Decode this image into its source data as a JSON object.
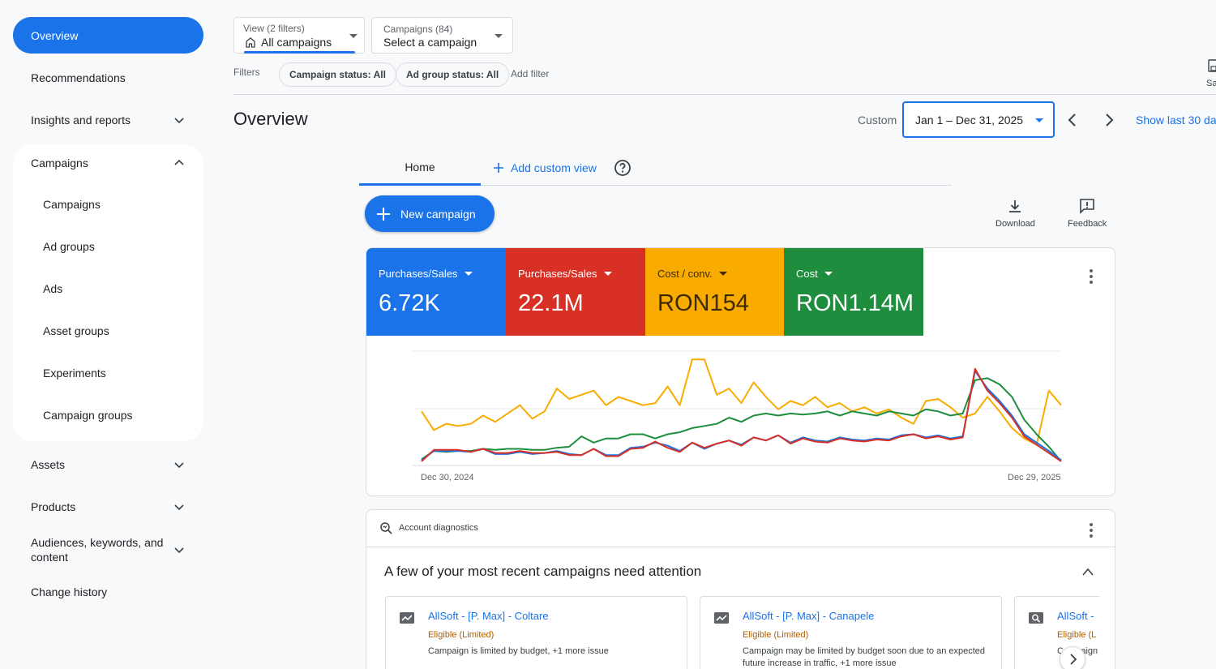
{
  "sidebar": {
    "overview": "Overview",
    "recommendations": "Recommendations",
    "insights": "Insights and reports",
    "campaigns_group": "Campaigns",
    "campaign_items": [
      "Campaigns",
      "Ad groups",
      "Ads",
      "Asset groups",
      "Experiments",
      "Campaign groups"
    ],
    "assets": "Assets",
    "products": "Products",
    "audiences": "Audiences, keywords, and content",
    "change_history": "Change history"
  },
  "filters": {
    "view_small": "View (2 filters)",
    "view_value": "All campaigns",
    "campaigns_small": "Campaigns (84)",
    "campaigns_value": "Select a campaign",
    "label": "Filters",
    "chips": [
      "Campaign status: All",
      "Ad group status: All"
    ],
    "add_filter": "Add filter",
    "right_partial": "Sa"
  },
  "header": {
    "title": "Overview",
    "date_label": "Custom",
    "date_range": "Jan 1 – Dec 31, 2025",
    "show_last": "Show last 30 da"
  },
  "tabs": {
    "home": "Home",
    "add_custom": "Add custom view"
  },
  "actions": {
    "new_campaign": "New campaign",
    "download": "Download",
    "feedback": "Feedback"
  },
  "metrics": [
    {
      "label": "Purchases/Sales",
      "value": "6.72K",
      "color": "#1a73e8"
    },
    {
      "label": "Purchases/Sales",
      "value": "22.1M",
      "color": "#d93025"
    },
    {
      "label": "Cost / conv.",
      "value": "RON154",
      "color": "#f9ab00"
    },
    {
      "label": "Cost",
      "value": "RON1.14M",
      "color": "#1e8e3e"
    }
  ],
  "chart_data": {
    "type": "line",
    "x_start": "Dec 30, 2024",
    "x_end": "Dec 29, 2025",
    "series": [
      {
        "color": "#1a73e8",
        "values": [
          5,
          14,
          14,
          14,
          13,
          16,
          11,
          11,
          13,
          11,
          12,
          14,
          11,
          10,
          16,
          10,
          10,
          17,
          18,
          22,
          19,
          14,
          22,
          16,
          21,
          24,
          20,
          27,
          24,
          29,
          22,
          27,
          24,
          23,
          27,
          25,
          24,
          26,
          25,
          29,
          30,
          27,
          29,
          26,
          28,
          91,
          74,
          62,
          48,
          30,
          22,
          14,
          5
        ]
      },
      {
        "color": "#d93025",
        "values": [
          4,
          15,
          15,
          15,
          13,
          16,
          12,
          12,
          14,
          12,
          12,
          13,
          10,
          10,
          16,
          9,
          9,
          16,
          17,
          23,
          17,
          13,
          22,
          17,
          21,
          24,
          19,
          27,
          24,
          29,
          21,
          26,
          23,
          22,
          26,
          24,
          23,
          25,
          24,
          28,
          30,
          26,
          28,
          25,
          27,
          93,
          72,
          60,
          46,
          28,
          20,
          12,
          4
        ]
      },
      {
        "color": "#f9ab00",
        "values": [
          52,
          34,
          40,
          38,
          40,
          48,
          42,
          50,
          58,
          45,
          52,
          74,
          64,
          68,
          72,
          58,
          66,
          62,
          58,
          60,
          76,
          58,
          102,
          102,
          68,
          74,
          60,
          80,
          66,
          54,
          62,
          58,
          66,
          56,
          60,
          52,
          56,
          50,
          54,
          46,
          40,
          62,
          64,
          56,
          46,
          50,
          66,
          52,
          36,
          26,
          20,
          72,
          58
        ]
      },
      {
        "color": "#1e8e3e",
        "values": [
          6,
          14,
          13,
          14,
          14,
          16,
          15,
          16,
          16,
          15,
          15,
          17,
          18,
          28,
          22,
          26,
          26,
          30,
          30,
          26,
          30,
          32,
          36,
          38,
          40,
          46,
          42,
          48,
          50,
          48,
          50,
          49,
          50,
          52,
          48,
          52,
          50,
          48,
          52,
          50,
          48,
          54,
          52,
          48,
          50,
          82,
          84,
          78,
          66,
          44,
          30,
          18,
          4
        ]
      }
    ]
  },
  "diagnostics": {
    "header": "Account diagnostics",
    "title": "A few of your most recent campaigns need attention",
    "cards": [
      {
        "name": "AllSoft - [P. Max] - Coltare",
        "status": "Eligible (Limited)",
        "desc": "Campaign is limited by budget, +1 more issue"
      },
      {
        "name": "AllSoft - [P. Max] - Canapele",
        "status": "Eligible (Limited)",
        "desc": "Campaign may be limited by budget soon due to an expected future increase in traffic, +1 more issue"
      },
      {
        "name": "AllSoft -",
        "status": "Eligible (L",
        "desc": "Campaign"
      }
    ]
  }
}
